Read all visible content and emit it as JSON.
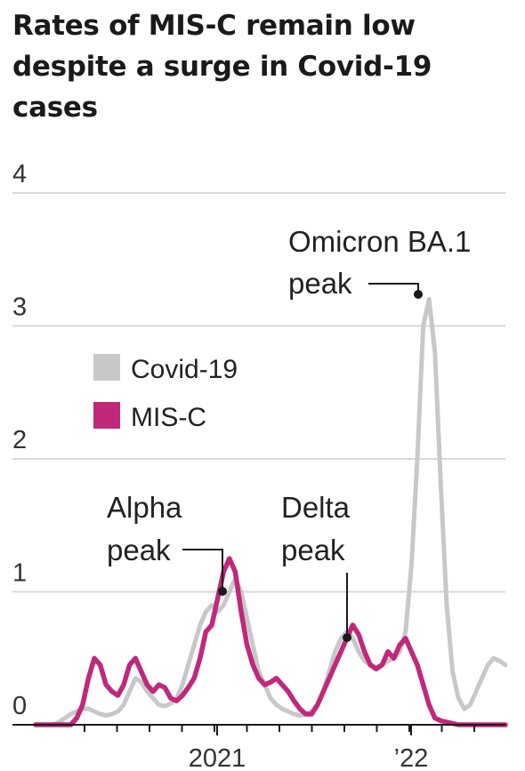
{
  "chart_data": {
    "type": "line",
    "title": "Rates of MIS-C remain low despite a surge in Covid-19 cases",
    "ylim": [
      0,
      4
    ],
    "yticks": [
      "0",
      "1",
      "2",
      "3",
      "4"
    ],
    "xticks": [
      "2021",
      "’22"
    ],
    "grid": true,
    "legend_placement": "left",
    "annotations": [
      {
        "lines": [
          "Alpha",
          "peak"
        ]
      },
      {
        "lines": [
          "Delta",
          "peak"
        ]
      },
      {
        "lines": [
          "Omicron BA.1",
          "peak"
        ]
      }
    ],
    "colors": {
      "covid": "#c8c8c8",
      "misc": "#c0287a"
    },
    "series": [
      {
        "name": "Covid-19",
        "values": [
          0,
          0,
          0,
          0,
          0.02,
          0.05,
          0.08,
          0.1,
          0.12,
          0.12,
          0.1,
          0.08,
          0.07,
          0.08,
          0.1,
          0.15,
          0.25,
          0.35,
          0.32,
          0.25,
          0.2,
          0.15,
          0.14,
          0.16,
          0.2,
          0.3,
          0.45,
          0.6,
          0.75,
          0.85,
          0.9,
          0.85,
          0.9,
          1.0,
          1.1,
          1.0,
          0.8,
          0.6,
          0.4,
          0.3,
          0.2,
          0.15,
          0.12,
          0.1,
          0.08,
          0.07,
          0.08,
          0.1,
          0.15,
          0.25,
          0.4,
          0.55,
          0.65,
          0.7,
          0.65,
          0.55,
          0.48,
          0.45,
          0.43,
          0.45,
          0.48,
          0.5,
          0.55,
          0.7,
          1.2,
          2.0,
          3.0,
          3.2,
          2.8,
          1.8,
          0.9,
          0.4,
          0.2,
          0.12,
          0.15,
          0.25,
          0.35,
          0.45,
          0.5,
          0.48,
          0.45
        ]
      },
      {
        "name": "MIS-C",
        "values": [
          0,
          0,
          0,
          0,
          0,
          0,
          0,
          0.05,
          0.15,
          0.35,
          0.5,
          0.45,
          0.3,
          0.25,
          0.22,
          0.3,
          0.45,
          0.5,
          0.4,
          0.3,
          0.25,
          0.3,
          0.28,
          0.2,
          0.18,
          0.22,
          0.28,
          0.35,
          0.5,
          0.7,
          0.75,
          0.95,
          1.15,
          1.25,
          1.15,
          0.85,
          0.6,
          0.45,
          0.35,
          0.3,
          0.32,
          0.35,
          0.3,
          0.25,
          0.18,
          0.12,
          0.08,
          0.08,
          0.15,
          0.25,
          0.35,
          0.45,
          0.55,
          0.65,
          0.75,
          0.68,
          0.55,
          0.45,
          0.42,
          0.45,
          0.55,
          0.5,
          0.6,
          0.65,
          0.55,
          0.45,
          0.3,
          0.15,
          0.05,
          0.03,
          0.02,
          0.01,
          0,
          0,
          0,
          0,
          0,
          0,
          0,
          0,
          0
        ]
      }
    ]
  }
}
